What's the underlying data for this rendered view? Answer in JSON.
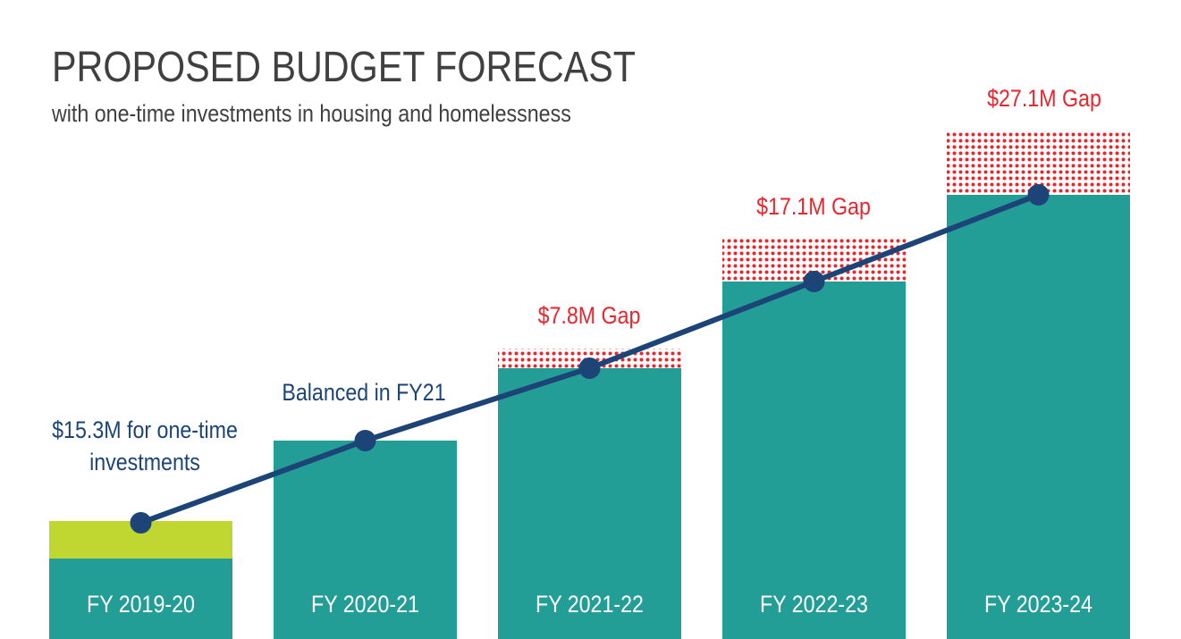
{
  "chart_data": {
    "type": "bar",
    "title": "PROPOSED BUDGET FORECAST",
    "subtitle": "with one-time investments in housing and homelessness",
    "categories": [
      "FY 2019-20",
      "FY 2020-21",
      "FY 2021-22",
      "FY 2022-23",
      "FY 2023-24"
    ],
    "series": [
      {
        "values": [
          90,
          222,
          303,
          400,
          497
        ]
      },
      {
        "values": [
          42,
          0,
          0,
          0,
          0
        ]
      },
      {
        "values": [
          0,
          0,
          22,
          48,
          70
        ]
      }
    ],
    "line": {
      "values": [
        130,
        222,
        303,
        400,
        497
      ]
    },
    "annotations": [
      {
        "category": "FY 2019-20",
        "text": "$15.3M for one-time investments",
        "lines": [
          "$15.3M for one-time",
          "investments"
        ]
      },
      {
        "category": "FY 2020-21",
        "text": "Balanced in FY21"
      },
      {
        "category": "FY 2021-22",
        "text": "$7.8M Gap"
      },
      {
        "category": "FY 2022-23",
        "text": "$17.1M Gap"
      },
      {
        "category": "FY 2023-24",
        "text": "$27.1M Gap"
      }
    ],
    "ylim": [
      0,
      700
    ],
    "grid": false,
    "legend": "none"
  },
  "colors": {
    "base": "#239e97",
    "one_time": "#bfd730",
    "gap": "#e8262e",
    "line": "#1d4477",
    "label_text": "#ffffff",
    "annotation_text": "#1d4477",
    "gap_text": "#e8262e",
    "title_text": "#404040"
  }
}
